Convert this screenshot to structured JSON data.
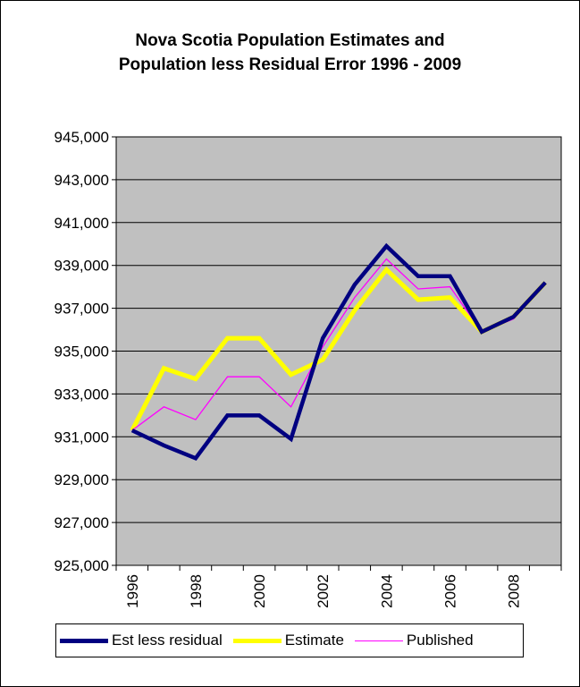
{
  "chart_data": {
    "type": "line",
    "title_lines": [
      "Nova Scotia Population Estimates and",
      "Population less Residual Error  1996 - 2009"
    ],
    "x": [
      1996,
      1997,
      1998,
      1999,
      2000,
      2001,
      2002,
      2003,
      2004,
      2005,
      2006,
      2007,
      2008,
      2009
    ],
    "x_tick_labels": [
      "1996",
      "1998",
      "2000",
      "2002",
      "2004",
      "2006",
      "2008"
    ],
    "y_tick_labels": [
      "945,000",
      "943,000",
      "941,000",
      "939,000",
      "937,000",
      "935,000",
      "933,000",
      "931,000",
      "929,000",
      "927,000",
      "925,000"
    ],
    "ylim": [
      925000,
      945000
    ],
    "grid": true,
    "legend_position": "bottom",
    "plot_background": "#c0c0c0",
    "series": [
      {
        "name": "Estimate",
        "color": "#ffff00",
        "values": [
          931300,
          934200,
          933700,
          935600,
          935600,
          933900,
          934600,
          936900,
          938800,
          937400,
          937500,
          935900,
          936600,
          938200
        ]
      },
      {
        "name": "Published",
        "color": "#ff00ff",
        "values": [
          931300,
          932400,
          931800,
          933800,
          933800,
          932400,
          935200,
          937500,
          939300,
          937900,
          938000,
          935900,
          936500,
          938200
        ]
      },
      {
        "name": "Est less residual",
        "color": "#000080",
        "values": [
          931300,
          930600,
          930000,
          932000,
          932000,
          930900,
          935600,
          938100,
          939900,
          938500,
          938500,
          935900,
          936600,
          938200
        ]
      }
    ],
    "legend": [
      {
        "name": "Est less residual",
        "color": "#000080"
      },
      {
        "name": "Estimate",
        "color": "#ffff00"
      },
      {
        "name": "Published",
        "color": "#ff00ff"
      }
    ]
  }
}
